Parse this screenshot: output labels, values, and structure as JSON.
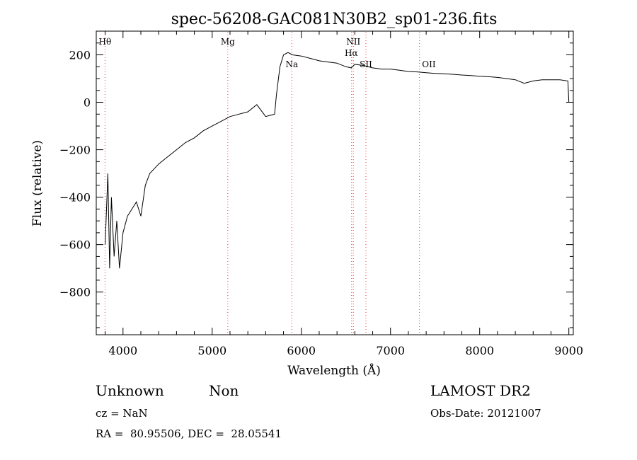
{
  "chart_data": {
    "type": "line",
    "title": "spec-56208-GAC081N30B2_sp01-236.fits",
    "xlabel": "Wavelength (Å)",
    "ylabel": "Flux (relative)",
    "xlim": [
      3700,
      9050
    ],
    "ylim": [
      -980,
      300
    ],
    "x_ticks": [
      4000,
      5000,
      6000,
      7000,
      8000,
      9000
    ],
    "y_ticks": [
      -800,
      -600,
      -400,
      -200,
      0,
      200
    ],
    "grid": false,
    "line_color": "#000000",
    "marker_color": "#ff3030",
    "series": [
      {
        "x": [
          3800,
          3830,
          3850,
          3870,
          3900,
          3930,
          3960,
          4000,
          4050,
          4100,
          4150,
          4200,
          4250,
          4300,
          4400,
          4500,
          4600,
          4700,
          4800,
          4900,
          5000,
          5100,
          5200,
          5300,
          5400,
          5500,
          5600,
          5700,
          5720,
          5760,
          5800,
          5850,
          5900,
          6000,
          6100,
          6200,
          6300,
          6400,
          6500,
          6560,
          6600,
          6700,
          6800,
          6900,
          7000,
          7100,
          7200,
          7300,
          7400,
          7500,
          7600,
          7700,
          7800,
          7900,
          8000,
          8100,
          8200,
          8300,
          8400,
          8500,
          8600,
          8700,
          8800,
          8900,
          8990,
          9000
        ],
        "y": [
          -600,
          -300,
          -700,
          -400,
          -650,
          -500,
          -700,
          -550,
          -480,
          -450,
          -420,
          -480,
          -350,
          -300,
          -260,
          -230,
          -200,
          -170,
          -150,
          -120,
          -100,
          -80,
          -60,
          -50,
          -40,
          -10,
          -60,
          -50,
          30,
          150,
          200,
          210,
          200,
          195,
          185,
          175,
          170,
          165,
          150,
          145,
          160,
          155,
          145,
          140,
          140,
          135,
          130,
          128,
          125,
          122,
          120,
          118,
          115,
          113,
          110,
          108,
          105,
          100,
          95,
          80,
          90,
          95,
          95,
          95,
          90,
          0
        ]
      }
    ],
    "emission_lines": [
      {
        "label": "Hθ",
        "x": 3798
      },
      {
        "label": "Mg",
        "x": 5175
      },
      {
        "label": "Na",
        "x": 5893
      },
      {
        "label": "NII",
        "x": 6583
      },
      {
        "label": "Hα",
        "x": 6563
      },
      {
        "label": "SII",
        "x": 6724
      },
      {
        "label": "OII",
        "x": 7325
      }
    ]
  },
  "info": {
    "class": "Unknown",
    "subclass": "Non",
    "survey": "LAMOST DR2",
    "cz": "cz = NaN",
    "obs_date": "Obs-Date: 20121007",
    "coords": "RA =  80.95506, DEC =  28.05541"
  }
}
